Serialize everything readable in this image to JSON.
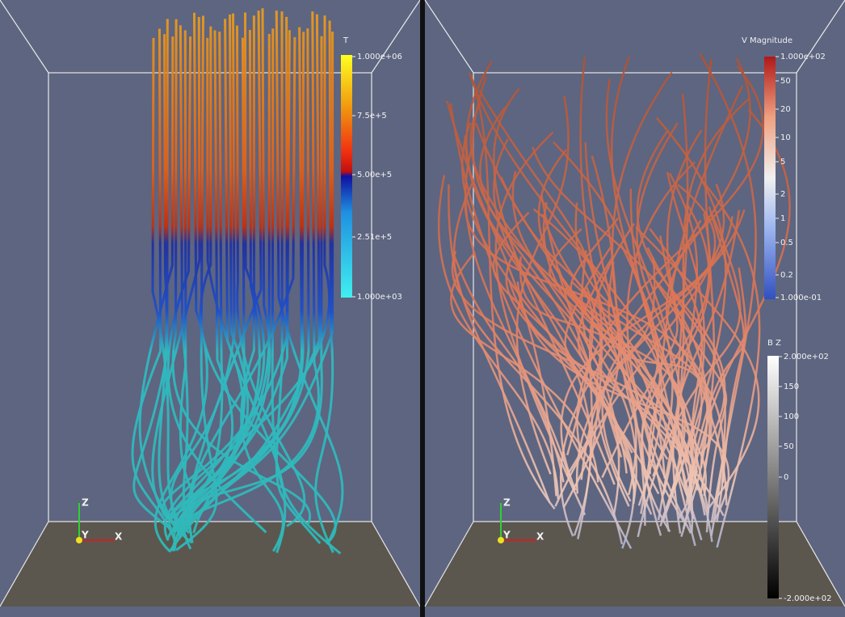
{
  "left_view": {
    "colorbar": {
      "title": "T",
      "labels": [
        "1.000e+06",
        "7.5e+5",
        "5.00e+5",
        "2.51e+5",
        "1.000e+03"
      ]
    },
    "axes": {
      "z": "Z",
      "y": "Y",
      "x": "X"
    }
  },
  "right_view": {
    "colorbars": [
      {
        "title": "V Magnitude",
        "labels": [
          "1.000e+02",
          "50",
          "20",
          "10",
          "5",
          "2",
          "1",
          "0.5",
          "0.2",
          "1.000e-01"
        ]
      },
      {
        "title": "B Z",
        "labels": [
          "2.000e+02",
          "150",
          "100",
          "50",
          "0",
          "-2.000e+02"
        ]
      }
    ],
    "axes": {
      "z": "Z",
      "y": "Y",
      "x": "X"
    }
  }
}
